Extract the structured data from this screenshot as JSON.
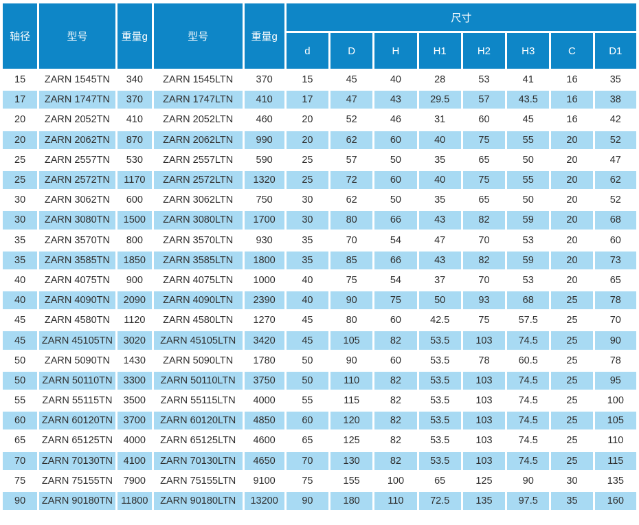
{
  "header": {
    "axis_diameter": "轴径",
    "model_tn": "型号",
    "weight_tn": "重量g",
    "model_ltn": "型号",
    "weight_ltn": "重量g",
    "dimensions_group": "尺寸",
    "dim_labels": [
      "d",
      "D",
      "H",
      "H1",
      "H2",
      "H3",
      "C",
      "D1"
    ]
  },
  "colors": {
    "header_bg": "#0e86c7",
    "alt_row_bg": "#a8daf3",
    "row_bg": "#ffffff",
    "header_text": "#ffffff",
    "body_text": "#2d2d2d"
  },
  "table": {
    "rows": [
      [
        "15",
        "ZARN 1545TN",
        "340",
        "ZARN 1545LTN",
        "370",
        "15",
        "45",
        "40",
        "28",
        "53",
        "41",
        "16",
        "35"
      ],
      [
        "17",
        "ZARN 1747TN",
        "370",
        "ZARN 1747LTN",
        "410",
        "17",
        "47",
        "43",
        "29.5",
        "57",
        "43.5",
        "16",
        "38"
      ],
      [
        "20",
        "ZARN 2052TN",
        "410",
        "ZARN 2052LTN",
        "460",
        "20",
        "52",
        "46",
        "31",
        "60",
        "45",
        "16",
        "42"
      ],
      [
        "20",
        "ZARN 2062TN",
        "870",
        "ZARN 2062LTN",
        "990",
        "20",
        "62",
        "60",
        "40",
        "75",
        "55",
        "20",
        "52"
      ],
      [
        "25",
        "ZARN 2557TN",
        "530",
        "ZARN 2557LTN",
        "590",
        "25",
        "57",
        "50",
        "35",
        "65",
        "50",
        "20",
        "47"
      ],
      [
        "25",
        "ZARN 2572TN",
        "1170",
        "ZARN 2572LTN",
        "1320",
        "25",
        "72",
        "60",
        "40",
        "75",
        "55",
        "20",
        "62"
      ],
      [
        "30",
        "ZARN 3062TN",
        "600",
        "ZARN 3062LTN",
        "750",
        "30",
        "62",
        "50",
        "35",
        "65",
        "50",
        "20",
        "52"
      ],
      [
        "30",
        "ZARN 3080TN",
        "1500",
        "ZARN 3080LTN",
        "1700",
        "30",
        "80",
        "66",
        "43",
        "82",
        "59",
        "20",
        "68"
      ],
      [
        "35",
        "ZARN 3570TN",
        "800",
        "ZARN 3570LTN",
        "930",
        "35",
        "70",
        "54",
        "47",
        "70",
        "53",
        "20",
        "60"
      ],
      [
        "35",
        "ZARN 3585TN",
        "1850",
        "ZARN 3585LTN",
        "1800",
        "35",
        "85",
        "66",
        "43",
        "82",
        "59",
        "20",
        "73"
      ],
      [
        "40",
        "ZARN 4075TN",
        "900",
        "ZARN 4075LTN",
        "1000",
        "40",
        "75",
        "54",
        "37",
        "70",
        "53",
        "20",
        "65"
      ],
      [
        "40",
        "ZARN 4090TN",
        "2090",
        "ZARN 4090LTN",
        "2390",
        "40",
        "90",
        "75",
        "50",
        "93",
        "68",
        "25",
        "78"
      ],
      [
        "45",
        "ZARN 4580TN",
        "1120",
        "ZARN 4580LTN",
        "1270",
        "45",
        "80",
        "60",
        "42.5",
        "75",
        "57.5",
        "25",
        "70"
      ],
      [
        "45",
        "ZARN 45105TN",
        "3020",
        "ZARN 45105LTN",
        "3420",
        "45",
        "105",
        "82",
        "53.5",
        "103",
        "74.5",
        "25",
        "90"
      ],
      [
        "50",
        "ZARN 5090TN",
        "1430",
        "ZARN 5090LTN",
        "1780",
        "50",
        "90",
        "60",
        "53.5",
        "78",
        "60.5",
        "25",
        "78"
      ],
      [
        "50",
        "ZARN 50110TN",
        "3300",
        "ZARN 50110LTN",
        "3750",
        "50",
        "110",
        "82",
        "53.5",
        "103",
        "74.5",
        "25",
        "95"
      ],
      [
        "55",
        "ZARN 55115TN",
        "3500",
        "ZARN 55115LTN",
        "4000",
        "55",
        "115",
        "82",
        "53.5",
        "103",
        "74.5",
        "25",
        "100"
      ],
      [
        "60",
        "ZARN 60120TN",
        "3700",
        "ZARN 60120LTN",
        "4850",
        "60",
        "120",
        "82",
        "53.5",
        "103",
        "74.5",
        "25",
        "105"
      ],
      [
        "65",
        "ZARN 65125TN",
        "4000",
        "ZARN 65125LTN",
        "4600",
        "65",
        "125",
        "82",
        "53.5",
        "103",
        "74.5",
        "25",
        "110"
      ],
      [
        "70",
        "ZARN 70130TN",
        "4100",
        "ZARN 70130LTN",
        "4650",
        "70",
        "130",
        "82",
        "53.5",
        "103",
        "74.5",
        "25",
        "115"
      ],
      [
        "75",
        "ZARN 75155TN",
        "7900",
        "ZARN 75155LTN",
        "9100",
        "75",
        "155",
        "100",
        "65",
        "125",
        "90",
        "30",
        "135"
      ],
      [
        "90",
        "ZARN 90180TN",
        "11800",
        "ZARN 90180LTN",
        "13200",
        "90",
        "180",
        "110",
        "72.5",
        "135",
        "97.5",
        "35",
        "160"
      ]
    ]
  }
}
